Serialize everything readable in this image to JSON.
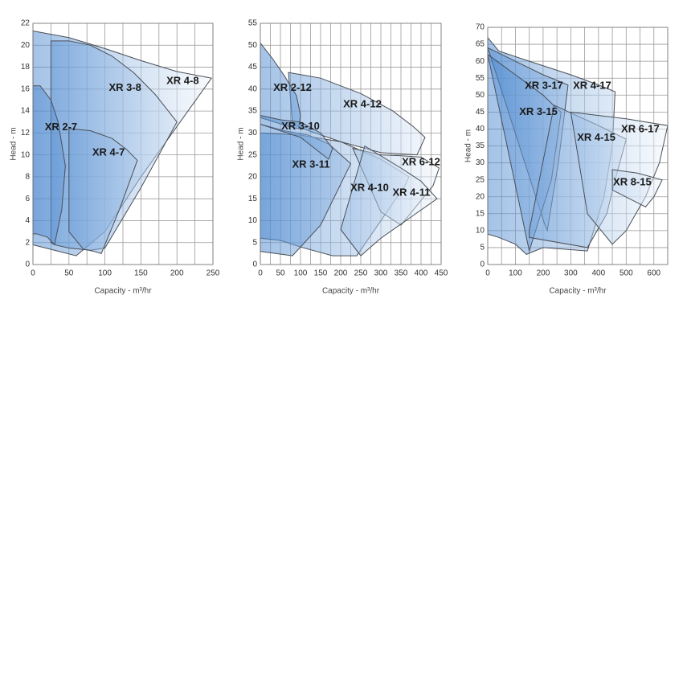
{
  "chart_data": [
    {
      "type": "polygon",
      "x_label": "Capacity - m³/hr",
      "y_label": "Head - m",
      "xlim": [
        0,
        250
      ],
      "ylim": [
        0,
        22
      ],
      "xticks": [
        0,
        50,
        100,
        150,
        200,
        250
      ],
      "yticks": [
        0,
        2,
        4,
        6,
        8,
        10,
        12,
        14,
        16,
        18,
        20,
        22
      ],
      "xgrid": [
        0,
        25,
        50,
        75,
        100,
        125,
        150,
        175,
        200,
        225,
        250
      ],
      "grid": true,
      "gradient": [
        "#4a87cf",
        "#f2f7fc"
      ],
      "stroke": "#4a4f57",
      "series": [
        {
          "name": "XR 4-8",
          "x": [
            0,
            50,
            100,
            150,
            200,
            248,
            150,
            100,
            60,
            30,
            0
          ],
          "values": [
            21.3,
            20.7,
            19.7,
            18.6,
            17.6,
            17,
            8,
            3,
            0.8,
            1.3,
            1.8
          ]
        },
        {
          "name": "XR 3-8",
          "x": [
            25,
            50,
            80,
            110,
            140,
            170,
            200,
            150,
            100,
            80,
            50,
            30,
            25
          ],
          "values": [
            20.4,
            20.4,
            20,
            19,
            17.5,
            15.5,
            13,
            7,
            1.5,
            1.3,
            1.5,
            1.8,
            2
          ]
        },
        {
          "name": "XR 4-7",
          "x": [
            50,
            80,
            110,
            130,
            145,
            120,
            95,
            85,
            70,
            50
          ],
          "values": [
            12.4,
            12.2,
            11.5,
            10.5,
            9.5,
            5,
            1,
            1.2,
            1.4,
            3
          ]
        },
        {
          "name": "XR 2-7",
          "x": [
            0,
            10,
            25,
            35,
            45,
            40,
            30,
            20,
            5,
            0
          ],
          "values": [
            16.3,
            16.3,
            15,
            13,
            9,
            5,
            1.8,
            2.5,
            2.8,
            2.8
          ]
        }
      ]
    },
    {
      "type": "polygon",
      "x_label": "Capacity - m³/hr",
      "y_label": "Head - m",
      "xlim": [
        0,
        450
      ],
      "ylim": [
        0,
        55
      ],
      "xticks": [
        0,
        50,
        100,
        150,
        200,
        250,
        300,
        350,
        400,
        450
      ],
      "yticks": [
        0,
        5,
        10,
        15,
        20,
        25,
        30,
        35,
        40,
        45,
        50,
        55
      ],
      "xgrid": [
        0,
        25,
        50,
        75,
        100,
        125,
        150,
        175,
        200,
        225,
        250,
        275,
        300,
        325,
        350,
        375,
        400,
        425,
        450
      ],
      "grid": true,
      "gradient": [
        "#4a87cf",
        "#f2f7fc"
      ],
      "stroke": "#4a4f57",
      "series": [
        {
          "name": "XR 4-12",
          "x": [
            70,
            150,
            250,
            330,
            380,
            410,
            390,
            300,
            200,
            120,
            80
          ],
          "values": [
            43.8,
            42.5,
            39,
            35,
            31.5,
            29,
            25,
            25.5,
            28,
            30.5,
            32
          ]
        },
        {
          "name": "XR 2-12",
          "x": [
            0,
            30,
            60,
            90,
            100,
            95,
            70,
            0
          ],
          "values": [
            50.5,
            47,
            43,
            38.5,
            34,
            31,
            31.5,
            33.5
          ]
        },
        {
          "name": "XR 4-10",
          "x": [
            0,
            100,
            200,
            300,
            370,
            360,
            240,
            180,
            100,
            50,
            0
          ],
          "values": [
            30,
            29.5,
            28,
            24,
            20,
            18,
            2,
            2,
            4,
            5.5,
            6
          ]
        },
        {
          "name": "XR 3-11",
          "x": [
            0,
            60,
            120,
            170,
            225,
            150,
            80,
            0
          ],
          "values": [
            32,
            30.5,
            29.5,
            27.5,
            23,
            9,
            2,
            3
          ]
        },
        {
          "name": "XR 3-10",
          "x": [
            0,
            50,
            100,
            150,
            180,
            170,
            100,
            0
          ],
          "values": [
            34,
            33,
            32.5,
            30,
            26.5,
            24,
            29,
            32
          ]
        },
        {
          "name": "XR 6-12",
          "x": [
            230,
            300,
            350,
            400,
            445,
            430,
            350,
            300
          ],
          "values": [
            26.5,
            25,
            24.8,
            24.5,
            22,
            18,
            9,
            12
          ]
        },
        {
          "name": "XR 4-11",
          "x": [
            260,
            350,
            400,
            440,
            300,
            250,
            200
          ],
          "values": [
            27,
            22,
            19,
            15,
            6,
            2,
            8
          ]
        }
      ]
    },
    {
      "type": "polygon",
      "x_label": "Capacity - m³/hr",
      "y_label": "Head - m",
      "xlim": [
        0,
        650
      ],
      "ylim": [
        0,
        70
      ],
      "xticks": [
        0,
        100,
        200,
        300,
        400,
        500,
        600
      ],
      "yticks": [
        0,
        5,
        10,
        15,
        20,
        25,
        30,
        35,
        40,
        45,
        50,
        55,
        60,
        65,
        70
      ],
      "xgrid": [
        0,
        50,
        100,
        150,
        200,
        250,
        300,
        350,
        400,
        450,
        500,
        550,
        600,
        650
      ],
      "grid": true,
      "gradient": [
        "#4a87cf",
        "#f2f7fc"
      ],
      "stroke": "#4a4f57",
      "series": [
        {
          "name": "XR 4-17",
          "x": [
            0,
            40,
            150,
            300,
            400,
            460,
            450,
            420,
            360,
            200,
            140,
            100,
            40,
            0
          ],
          "values": [
            67,
            63,
            60,
            56,
            53,
            51,
            35,
            20,
            4,
            5,
            3,
            6,
            8,
            9
          ]
        },
        {
          "name": "XR 3-17",
          "x": [
            0,
            100,
            200,
            290,
            255,
            215,
            205
          ],
          "values": [
            64,
            60,
            56,
            53,
            30,
            10,
            12
          ]
        },
        {
          "name": "XR 3-15",
          "x": [
            0,
            100,
            200,
            250,
            265,
            230,
            150
          ],
          "values": [
            62,
            56,
            50,
            46,
            45,
            25,
            4
          ]
        },
        {
          "name": "XR 4-15",
          "x": [
            240,
            320,
            400,
            500,
            460,
            430,
            360,
            150,
            150
          ],
          "values": [
            47,
            44,
            41,
            37,
            25,
            15,
            5,
            8,
            10
          ]
        },
        {
          "name": "XR 6-17",
          "x": [
            300,
            400,
            500,
            650,
            620,
            570,
            500,
            450,
            360
          ],
          "values": [
            45,
            44,
            43,
            41,
            30,
            20,
            10,
            6,
            15
          ]
        },
        {
          "name": "XR 8-15",
          "x": [
            450,
            540,
            630,
            600,
            570,
            450
          ],
          "values": [
            28,
            27,
            25,
            20,
            17,
            22
          ]
        }
      ]
    }
  ]
}
